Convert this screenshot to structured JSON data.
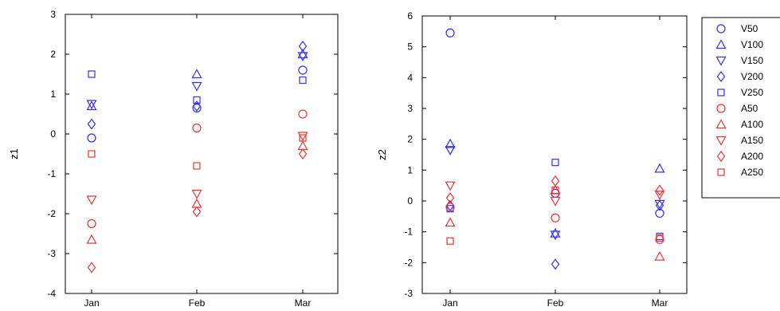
{
  "chart_data": [
    {
      "type": "scatter",
      "ylabel": "z1",
      "categories": [
        "Jan",
        "Feb",
        "Mar"
      ],
      "ylim": [
        -4,
        3
      ],
      "yticks": [
        -4,
        -3,
        -2,
        -1,
        0,
        1,
        2,
        3
      ],
      "series": [
        {
          "name": "V50",
          "color": "#2f2fff",
          "marker": "circle",
          "values": [
            -0.1,
            0.65,
            1.6
          ]
        },
        {
          "name": "V100",
          "color": "#2f2fff",
          "marker": "triangle",
          "values": [
            0.7,
            1.5,
            2.0
          ]
        },
        {
          "name": "V150",
          "color": "#2f2fff",
          "marker": "tri-down",
          "values": [
            0.75,
            1.2,
            1.95
          ]
        },
        {
          "name": "V200",
          "color": "#2f2fff",
          "marker": "diamond",
          "values": [
            0.25,
            0.7,
            2.2
          ]
        },
        {
          "name": "V250",
          "color": "#2f2fff",
          "marker": "square",
          "values": [
            1.5,
            0.85,
            1.35
          ]
        },
        {
          "name": "A50",
          "color": "#ee3333",
          "marker": "circle",
          "values": [
            -2.25,
            0.15,
            0.5
          ]
        },
        {
          "name": "A100",
          "color": "#ee3333",
          "marker": "triangle",
          "values": [
            -2.65,
            -1.75,
            -0.3
          ]
        },
        {
          "name": "A150",
          "color": "#ee3333",
          "marker": "tri-down",
          "values": [
            -1.65,
            -1.5,
            -0.05
          ]
        },
        {
          "name": "A200",
          "color": "#ee3333",
          "marker": "diamond",
          "values": [
            -3.35,
            -1.95,
            -0.5
          ]
        },
        {
          "name": "A250",
          "color": "#ee3333",
          "marker": "square",
          "values": [
            -0.5,
            -0.8,
            -0.1
          ]
        }
      ]
    },
    {
      "type": "scatter",
      "ylabel": "z2",
      "categories": [
        "Jan",
        "Feb",
        "Mar"
      ],
      "ylim": [
        -3,
        6
      ],
      "yticks": [
        -3,
        -2,
        -1,
        0,
        1,
        2,
        3,
        4,
        5,
        6
      ],
      "legend": "right",
      "series": [
        {
          "name": "V50",
          "color": "#2f2fff",
          "marker": "circle",
          "values": [
            5.45,
            0.25,
            -0.4
          ]
        },
        {
          "name": "V100",
          "color": "#2f2fff",
          "marker": "triangle",
          "values": [
            1.85,
            -1.05,
            1.05
          ]
        },
        {
          "name": "V150",
          "color": "#2f2fff",
          "marker": "tri-down",
          "values": [
            1.65,
            -1.1,
            -0.1
          ]
        },
        {
          "name": "V200",
          "color": "#2f2fff",
          "marker": "diamond",
          "values": [
            -0.15,
            -2.05,
            -0.15
          ]
        },
        {
          "name": "V250",
          "color": "#2f2fff",
          "marker": "square",
          "values": [
            -0.25,
            1.25,
            -1.15
          ]
        },
        {
          "name": "A50",
          "color": "#ee3333",
          "marker": "circle",
          "values": [
            -0.2,
            -0.55,
            -1.25
          ]
        },
        {
          "name": "A100",
          "color": "#ee3333",
          "marker": "triangle",
          "values": [
            -0.7,
            0.35,
            -1.8
          ]
        },
        {
          "name": "A150",
          "color": "#ee3333",
          "marker": "tri-down",
          "values": [
            0.5,
            0.0,
            0.2
          ]
        },
        {
          "name": "A200",
          "color": "#ee3333",
          "marker": "diamond",
          "values": [
            0.1,
            0.65,
            0.35
          ]
        },
        {
          "name": "A250",
          "color": "#ee3333",
          "marker": "square",
          "values": [
            -1.3,
            0.35,
            -1.2
          ]
        }
      ]
    }
  ]
}
